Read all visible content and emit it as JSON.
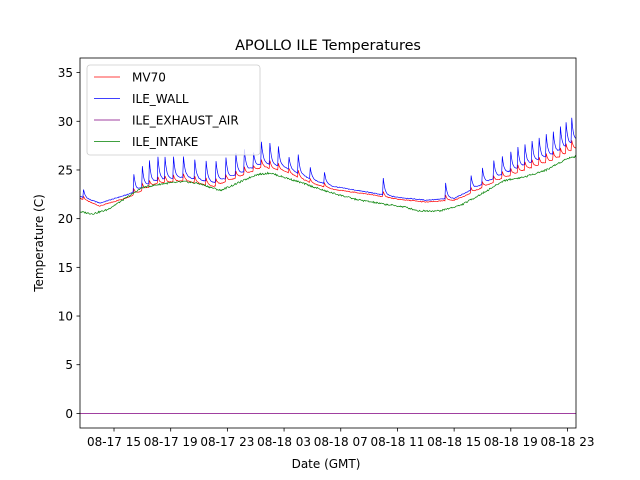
{
  "chart_data": {
    "type": "line",
    "title": "APOLLO ILE Temperatures",
    "xlabel": "Date (GMT)",
    "ylabel": "Temperature (C)",
    "xlim": [
      12.6,
      47.6
    ],
    "ylim": [
      -1.5,
      36.5
    ],
    "grid": false,
    "legend_position": "top-left",
    "yticks": [
      0,
      5,
      10,
      15,
      20,
      25,
      30,
      35
    ],
    "ytick_labels": [
      "0",
      "5",
      "10",
      "15",
      "20",
      "25",
      "30",
      "35"
    ],
    "xticks": [
      15,
      19,
      23,
      27,
      31,
      35,
      39,
      43,
      47
    ],
    "xtick_labels": [
      "08-17 15",
      "08-17 19",
      "08-17 23",
      "08-18 03",
      "08-18 07",
      "08-18 11",
      "08-18 15",
      "08-18 19",
      "08-18 23"
    ],
    "x_units": "hours since 08-17 00 GMT",
    "series": [
      {
        "name": "MV70",
        "color": "#ff0000",
        "x": [
          12.6,
          14.0,
          16.0,
          18.0,
          20.0,
          22.0,
          24.0,
          25.5,
          27.0,
          29.0,
          30.5,
          33.0,
          35.0,
          37.0,
          39.0,
          40.0,
          42.0,
          44.0,
          46.0,
          47.6
        ],
        "y": [
          22.1,
          21.3,
          22.2,
          23.6,
          23.9,
          23.3,
          24.4,
          25.3,
          24.9,
          23.6,
          23.0,
          22.5,
          22.0,
          21.7,
          21.9,
          22.5,
          23.9,
          25.0,
          26.0,
          27.2
        ],
        "spikes_x": [
          12.8,
          16.4,
          17.0,
          17.5,
          18.1,
          18.6,
          19.2,
          19.9,
          20.7,
          21.5,
          22.2,
          22.9,
          23.6,
          24.2,
          24.8,
          25.4,
          26.0,
          26.6,
          27.3,
          28.0,
          28.8,
          29.8,
          34.0,
          38.4,
          40.2,
          41.0,
          41.8,
          42.4,
          43.0,
          43.5,
          44.0,
          44.5,
          45.0,
          45.5,
          46.0,
          46.5,
          46.9,
          47.3
        ],
        "spikes_h": [
          0.5,
          0.6,
          0.7,
          0.7,
          0.7,
          0.7,
          0.7,
          0.7,
          0.7,
          0.7,
          0.7,
          0.7,
          0.7,
          0.8,
          0.8,
          0.8,
          0.8,
          0.7,
          0.7,
          0.7,
          0.6,
          0.6,
          0.5,
          0.6,
          0.5,
          0.6,
          0.6,
          0.7,
          0.7,
          0.8,
          0.8,
          0.8,
          0.8,
          0.9,
          0.9,
          0.9,
          1.0,
          1.0
        ]
      },
      {
        "name": "ILE_WALL",
        "color": "#0000ff",
        "x": [
          12.6,
          14.0,
          16.0,
          18.0,
          20.0,
          22.0,
          24.0,
          25.5,
          27.0,
          29.0,
          30.5,
          33.0,
          35.0,
          37.0,
          39.0,
          40.0,
          42.0,
          44.0,
          46.0,
          47.6
        ],
        "y": [
          22.3,
          21.6,
          22.5,
          23.9,
          24.3,
          23.7,
          24.7,
          25.7,
          25.3,
          24.0,
          23.3,
          22.7,
          22.2,
          21.9,
          22.1,
          22.8,
          24.3,
          25.5,
          26.6,
          28.0
        ],
        "spikes_x": [
          12.8,
          16.4,
          17.0,
          17.5,
          18.1,
          18.6,
          19.2,
          19.9,
          20.7,
          21.5,
          22.2,
          22.9,
          23.6,
          24.2,
          24.8,
          25.4,
          26.0,
          26.6,
          27.3,
          28.0,
          28.8,
          29.8,
          34.0,
          38.4,
          40.2,
          41.0,
          41.8,
          42.4,
          43.0,
          43.5,
          44.0,
          44.5,
          45.0,
          45.5,
          46.0,
          46.5,
          46.9,
          47.3
        ],
        "spikes_h": [
          1.2,
          1.8,
          2.2,
          2.4,
          2.4,
          2.3,
          2.2,
          2.1,
          2.0,
          2.1,
          2.1,
          2.1,
          2.2,
          2.3,
          2.3,
          2.3,
          2.2,
          2.0,
          1.9,
          1.9,
          1.8,
          1.8,
          1.7,
          1.6,
          1.5,
          1.7,
          1.8,
          1.9,
          2.0,
          2.1,
          2.1,
          2.2,
          2.2,
          2.3,
          2.3,
          2.4,
          2.4,
          2.5
        ]
      },
      {
        "name": "ILE_EXHAUST_AIR",
        "color": "#800080",
        "x": [
          12.6,
          47.6
        ],
        "y": [
          0.0,
          0.0
        ]
      },
      {
        "name": "ILE_INTAKE",
        "color": "#008000",
        "x": [
          12.6,
          13.5,
          14.5,
          15.5,
          17.0,
          18.5,
          20.0,
          21.0,
          22.5,
          23.5,
          25.0,
          26.0,
          28.0,
          30.0,
          32.0,
          34.0,
          35.5,
          36.5,
          38.0,
          39.5,
          41.0,
          42.5,
          44.0,
          45.5,
          47.0,
          47.6
        ],
        "y": [
          20.7,
          20.5,
          20.9,
          21.8,
          23.2,
          23.6,
          23.8,
          23.6,
          22.9,
          23.5,
          24.5,
          24.7,
          23.8,
          22.8,
          22.0,
          21.5,
          21.2,
          20.8,
          20.8,
          21.4,
          22.6,
          23.9,
          24.3,
          25.0,
          26.2,
          26.4
        ]
      }
    ]
  }
}
